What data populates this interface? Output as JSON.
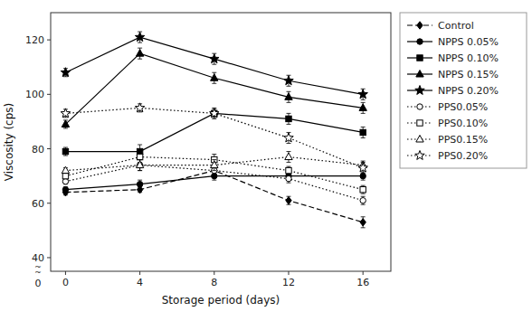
{
  "chart_data": {
    "type": "line",
    "xlabel": "Storage period (days)",
    "ylabel": "Viscosity (cps)",
    "x": [
      0,
      4,
      8,
      12,
      16
    ],
    "xlim": [
      -0.8,
      17.5
    ],
    "xticks": [
      0,
      4,
      8,
      12,
      16
    ],
    "ylim": [
      35,
      130
    ],
    "yticks": [
      40,
      60,
      80,
      100,
      120
    ],
    "grid": false,
    "legend": "right",
    "annotations": [
      {
        "text": "~\n~"
      },
      {
        "text": "0"
      }
    ],
    "series": [
      {
        "name": "Control",
        "color": "black",
        "marker": "diamond",
        "line_style": "dashed",
        "values": [
          64,
          65,
          72,
          61,
          53
        ],
        "errors": [
          1.0,
          1.0,
          1.5,
          1.5,
          2.0
        ]
      },
      {
        "name": "NPPS 0.05%",
        "color": "black",
        "marker": "circle",
        "line_style": "solid",
        "values": [
          65,
          67,
          70,
          70,
          70
        ],
        "errors": [
          1.0,
          1.5,
          1.5,
          1.5,
          1.5
        ]
      },
      {
        "name": "NPPS 0.10%",
        "color": "black",
        "marker": "square",
        "line_style": "solid",
        "values": [
          79,
          79,
          93,
          91,
          86
        ],
        "errors": [
          1.5,
          2.5,
          2.0,
          2.0,
          2.0
        ]
      },
      {
        "name": "NPPS 0.15%",
        "color": "black",
        "marker": "triangle",
        "line_style": "solid",
        "values": [
          89,
          115,
          106,
          99,
          95
        ],
        "errors": [
          1.5,
          2.0,
          2.0,
          2.0,
          2.0
        ]
      },
      {
        "name": "NPPS 0.20%",
        "color": "black",
        "marker": "star",
        "line_style": "solid",
        "values": [
          108,
          121,
          113,
          105,
          100
        ],
        "errors": [
          1.5,
          2.0,
          2.0,
          2.0,
          2.0
        ]
      },
      {
        "name": "PPS0.05%",
        "color": "black",
        "marker": "circle-open",
        "line_style": "dotted",
        "values": [
          68,
          74,
          72,
          69,
          61
        ],
        "errors": [
          1.0,
          2.0,
          1.5,
          1.5,
          1.5
        ]
      },
      {
        "name": "PPS0.10%",
        "color": "black",
        "marker": "square-open",
        "line_style": "dotted",
        "values": [
          70,
          77,
          76,
          72,
          65
        ],
        "errors": [
          1.0,
          2.0,
          2.0,
          1.5,
          1.5
        ]
      },
      {
        "name": "PPS0.15%",
        "color": "black",
        "marker": "triangle-open",
        "line_style": "dotted",
        "values": [
          72,
          74,
          74,
          77,
          74
        ],
        "errors": [
          1.0,
          2.0,
          2.0,
          2.0,
          1.5
        ]
      },
      {
        "name": "PPS0.20%",
        "color": "black",
        "marker": "star-open",
        "line_style": "dotted",
        "values": [
          93,
          95,
          93,
          84,
          73
        ],
        "errors": [
          1.5,
          1.5,
          1.5,
          2.0,
          2.0
        ]
      }
    ]
  }
}
